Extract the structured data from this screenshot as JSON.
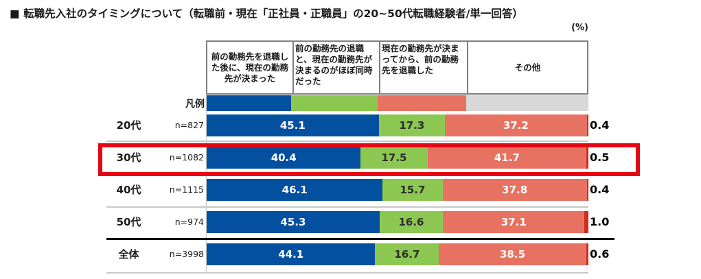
{
  "title_bullet": "■",
  "title": "転職先入社のタイミングについて（転職前・現在「正社員・正職員」の20~50代転職経験者/単一回答）",
  "unit_label": "(%)",
  "legend_label": "凡例",
  "colors": {
    "segment_blue": "#0450a0",
    "segment_green": "#8cc751",
    "segment_salmon": "#e87261",
    "segment_other_in_bar": "#d32a1f",
    "legend_other_gray": "#d8d8d8",
    "highlight_box_red": "#e60613",
    "header_border_gray": "#7f7f7f"
  },
  "chart_data": {
    "type": "bar",
    "subtype": "horizontal-stacked-100pct",
    "title": "転職先入社のタイミングについて（転職前・現在「正社員・正職員」の20~50代転職経験者/単一回答）",
    "unit": "%",
    "legend_position": "top-table",
    "series_labels": [
      "前の勤務先を退職した後に、現在の勤務先が決まった",
      "前の勤務先の退職と、現在の勤務先が決まるのがほぼ同時だった",
      "現在の勤務先が決まってから、前の勤務先を退職した",
      "その他"
    ],
    "categories": [
      "20代",
      "30代",
      "40代",
      "50代",
      "全体"
    ],
    "highlighted_category": "30代",
    "rows": [
      {
        "label": "20代",
        "n": "n=827",
        "values": [
          45.1,
          17.3,
          37.2,
          0.4
        ],
        "labels": [
          "45.1",
          "17.3",
          "37.2",
          "0.4"
        ]
      },
      {
        "label": "30代",
        "n": "n=1082",
        "values": [
          40.4,
          17.5,
          41.7,
          0.5
        ],
        "labels": [
          "40.4",
          "17.5",
          "41.7",
          "0.5"
        ]
      },
      {
        "label": "40代",
        "n": "n=1115",
        "values": [
          46.1,
          15.7,
          37.8,
          0.4
        ],
        "labels": [
          "46.1",
          "15.7",
          "37.8",
          "0.4"
        ]
      },
      {
        "label": "50代",
        "n": "n=974",
        "values": [
          45.3,
          16.6,
          37.1,
          1.0
        ],
        "labels": [
          "45.3",
          "16.6",
          "37.1",
          "1.0"
        ]
      },
      {
        "label": "全体",
        "n": "n=3998",
        "values": [
          44.1,
          16.7,
          38.5,
          0.6
        ],
        "labels": [
          "44.1",
          "16.7",
          "38.5",
          "0.6"
        ]
      }
    ]
  }
}
